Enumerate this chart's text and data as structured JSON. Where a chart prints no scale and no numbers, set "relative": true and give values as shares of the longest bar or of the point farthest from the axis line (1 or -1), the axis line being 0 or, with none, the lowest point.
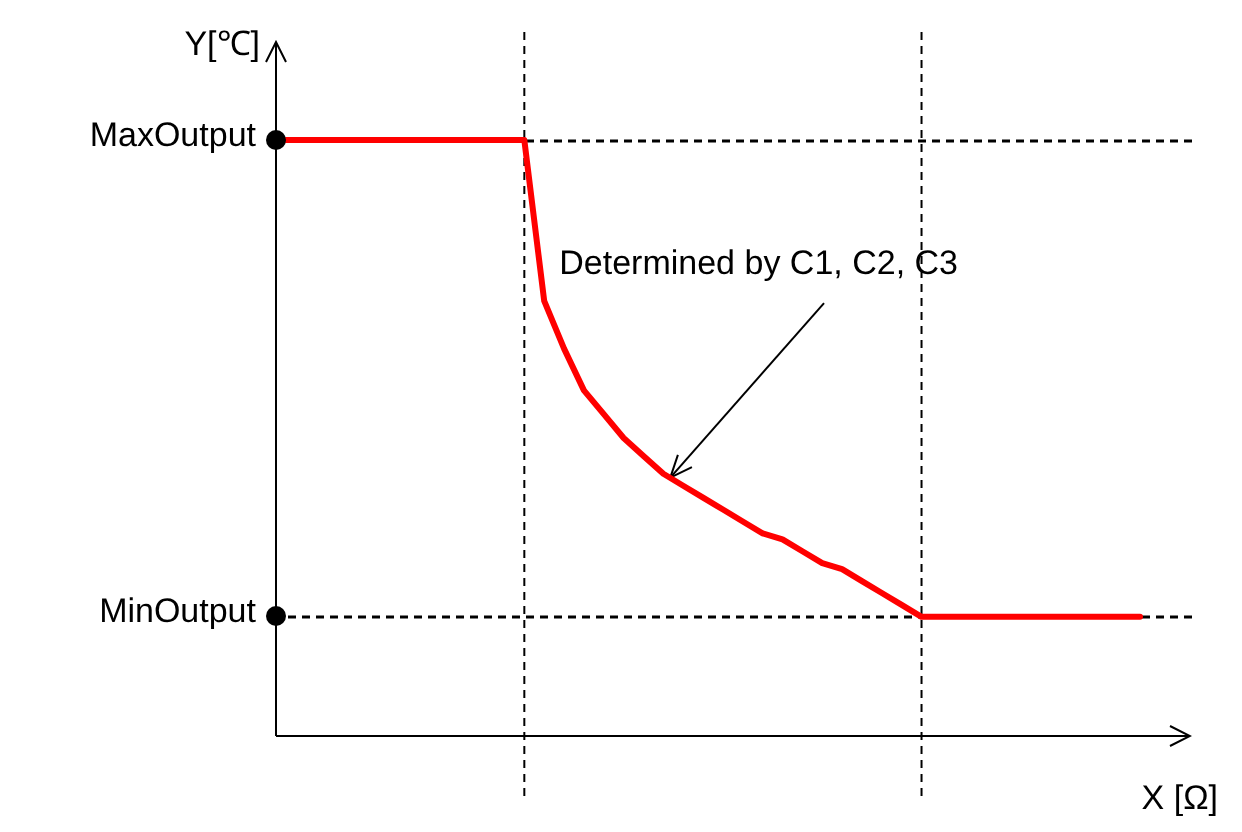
{
  "chart_data": {
    "type": "line",
    "relative": true,
    "xlabel": "X [Ω]",
    "ylabel": "Y[℃]",
    "legend": false,
    "marker": "none",
    "line_style": "solid",
    "categories": [
      null,
      null,
      null,
      null,
      null,
      null,
      null,
      null,
      null,
      null,
      null,
      null,
      null,
      null,
      null,
      null,
      null,
      null,
      null,
      null,
      null,
      null,
      null,
      null,
      null,
      null,
      null,
      null,
      null,
      null,
      null,
      null,
      null,
      null,
      null,
      null,
      null,
      null,
      null,
      null,
      null,
      null,
      null,
      null
    ],
    "series": [
      {
        "color": "#ff0000",
        "values": [
          1,
          1,
          1,
          1,
          1,
          1,
          1,
          1,
          1,
          1,
          1,
          1,
          1,
          0.73,
          0.65,
          0.58,
          0.54,
          0.5,
          0.47,
          0.44,
          0.42,
          0.4,
          0.38,
          0.36,
          0.34,
          0.33,
          0.31,
          0.29,
          0.28,
          0.26,
          0.24,
          0.22,
          0.2,
          0.2,
          0.2,
          0.2,
          0.2,
          0.2,
          0.2,
          0.2,
          0.2,
          0.2,
          0.2,
          0.2
        ]
      }
    ],
    "ref_lines": [
      {
        "axis": "y",
        "value": 1,
        "label": "MaxOutput",
        "line_style": "dashed",
        "color": "#000000"
      },
      {
        "axis": "y",
        "value": 0.2,
        "label": "MinOutput",
        "line_style": "dashed",
        "color": "#000000"
      }
    ],
    "annotations": [
      "Determined by C1, C2, C3"
    ]
  }
}
